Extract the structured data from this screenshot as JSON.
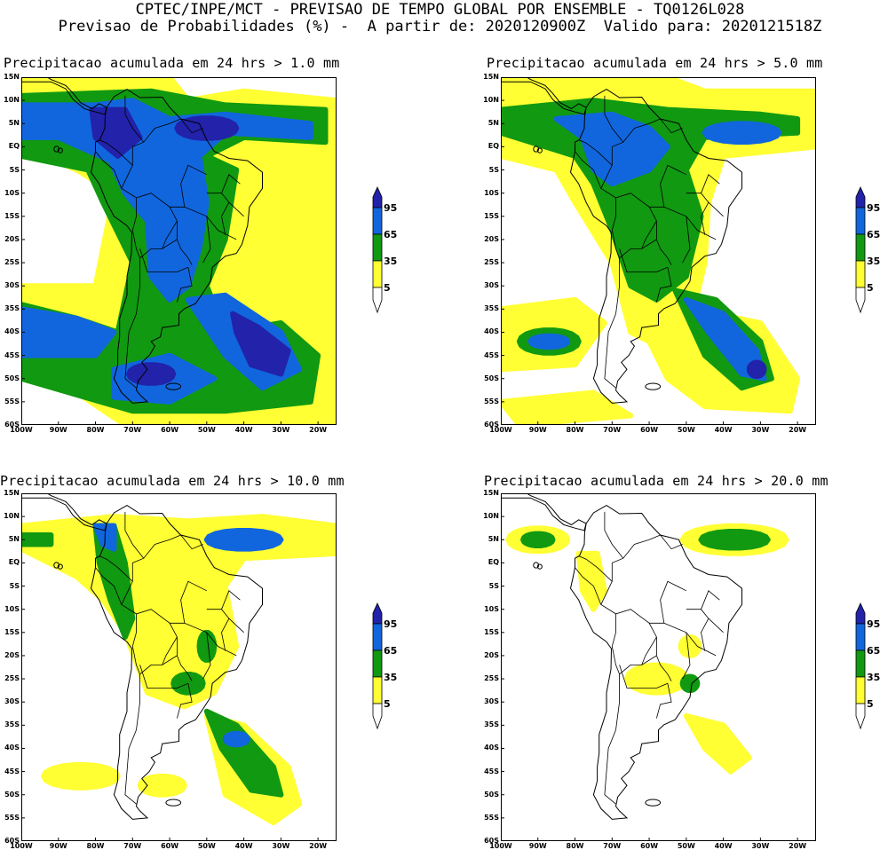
{
  "header": {
    "line1": "CPTEC/INPE/MCT - PREVISAO DE TEMPO GLOBAL POR ENSEMBLE - TQ0126L028",
    "line2": "Previsao de Probabilidades (%) -  A partir de: 2020120900Z  Valido para: 2020121518Z"
  },
  "panels": [
    {
      "title": "Precipitacao acumulada em 24 hrs > 1.0 mm"
    },
    {
      "title": "Precipitacao acumulada em 24 hrs > 5.0 mm"
    },
    {
      "title": "Precipitacao acumulada em 24 hrs > 10.0 mm"
    },
    {
      "title": "Precipitacao acumulada em 24 hrs > 20.0 mm"
    }
  ],
  "lat_labels": [
    "15N",
    "10N",
    "5N",
    "EQ",
    "5S",
    "10S",
    "15S",
    "20S",
    "25S",
    "30S",
    "35S",
    "40S",
    "45S",
    "50S",
    "55S",
    "60S"
  ],
  "lon_labels": [
    "100W",
    "90W",
    "80W",
    "70W",
    "60W",
    "50W",
    "40W",
    "30W",
    "20W"
  ],
  "colorbar": {
    "labels": [
      "95",
      "65",
      "35",
      "5"
    ],
    "colors": {
      "yellow": "#ffff33",
      "green": "#119911",
      "blue": "#1166dd",
      "darkblue": "#2222aa"
    }
  }
}
